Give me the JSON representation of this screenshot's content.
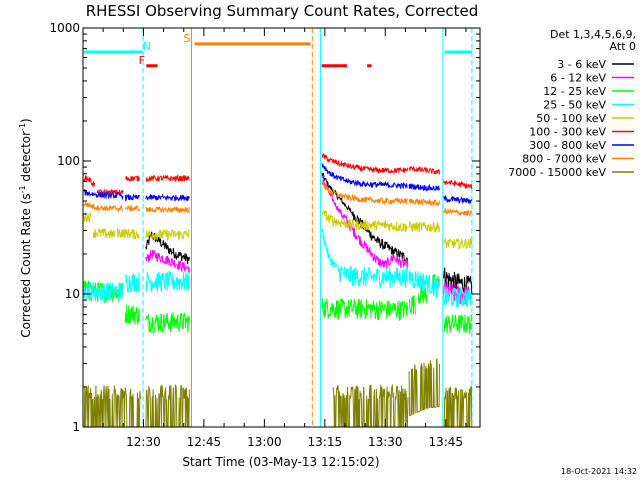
{
  "chart_data": {
    "type": "line",
    "title": "RHESSI Observing Summary Count Rates, Corrected",
    "xlabel": "Start Time (03-May-13 12:15:02)",
    "ylabel_main": "Corrected Count Rate (s",
    "ylabel_sup1": "-1",
    "ylabel_mid": " detector",
    "ylabel_sup2": "-1",
    "ylabel_end": ")",
    "yscale": "log",
    "xlim_minutes": [
      0,
      98.5
    ],
    "ylim": [
      1,
      1000
    ],
    "x_ticks": [
      {
        "label": "12:30",
        "minute": 15
      },
      {
        "label": "12:45",
        "minute": 30
      },
      {
        "label": "13:00",
        "minute": 45
      },
      {
        "label": "13:15",
        "minute": 60
      },
      {
        "label": "13:30",
        "minute": 75
      },
      {
        "label": "13:45",
        "minute": 90
      }
    ],
    "y_ticks": [
      {
        "label": "1",
        "value": 1
      },
      {
        "label": "10",
        "value": 10
      },
      {
        "label": "100",
        "value": 100
      },
      {
        "label": "1000",
        "value": 1000
      }
    ],
    "legend_header": [
      "Det 1,3,4,5,6,9,",
      "Att 0"
    ],
    "series": [
      {
        "name": "3 - 6 keV",
        "color": "#000000",
        "segments": [
          {
            "x": [
              15.6,
              17,
              19,
              21,
              23,
              25,
              26.5
            ],
            "y": [
              22,
              28,
              25,
              22,
              20,
              19,
              18
            ]
          },
          {
            "x": [
              59.3,
              61,
              63,
              65,
              67,
              69,
              71,
              73,
              75,
              77,
              79,
              80.6
            ],
            "y": [
              80,
              65,
              55,
              47,
              40,
              34,
              29,
              25,
              23,
              21,
              19.5,
              18.5
            ]
          },
          {
            "x": [
              89.5,
              90.5,
              92,
              94,
              96.5
            ],
            "y": [
              14,
              13,
              12.5,
              12,
              11.5
            ]
          }
        ]
      },
      {
        "name": "6 - 12 keV",
        "color": "#ff00ff",
        "segments": [
          {
            "x": [
              15.6,
              17,
              19,
              21,
              23,
              25,
              26.5
            ],
            "y": [
              18,
              20,
              19,
              18,
              17,
              16,
              15.5
            ]
          },
          {
            "x": [
              59.3,
              61,
              63,
              65,
              67,
              69,
              71,
              73,
              74,
              75,
              76,
              77,
              78,
              79,
              80.6
            ],
            "y": [
              75,
              58,
              45,
              37,
              30,
              25,
              21,
              18,
              17,
              16.5,
              17.5,
              19,
              18,
              17,
              16.5
            ]
          },
          {
            "x": [
              89.5,
              90.5,
              92,
              94,
              96.5
            ],
            "y": [
              11,
              10.5,
              10,
              10,
              9.8
            ]
          }
        ]
      },
      {
        "name": "12 - 25 keV",
        "color": "#00ff00",
        "segments": [
          {
            "x": [
              0.2,
              3,
              6,
              10
            ],
            "y": [
              11,
              10.5,
              10.5,
              10.5
            ]
          },
          {
            "x": [
              10.5,
              12,
              14
            ],
            "y": [
              7.2,
              7.2,
              7.0
            ]
          },
          {
            "x": [
              15.6,
              20,
              26.5
            ],
            "y": [
              6.2,
              6.2,
              6.2
            ]
          },
          {
            "x": [
              59.3,
              65,
              70,
              75,
              79,
              80.6
            ],
            "y": [
              8.0,
              7.8,
              7.8,
              7.7,
              7.7,
              7.7
            ]
          },
          {
            "x": [
              80.9,
              82.5
            ],
            "y": [
              8.5,
              8.5
            ]
          },
          {
            "x": [
              83.2,
              85.5
            ],
            "y": [
              10,
              10
            ]
          },
          {
            "x": [
              86.5,
              88.5
            ],
            "y": [
              12,
              12
            ]
          },
          {
            "x": [
              89.5,
              93,
              96.5
            ],
            "y": [
              6.0,
              6.0,
              6.0
            ]
          }
        ]
      },
      {
        "name": "25 - 50 keV",
        "color": "#00ffff",
        "segments": [
          {
            "x": [
              0.2,
              3,
              6,
              10
            ],
            "y": [
              11,
              10.5,
              10.5,
              10.5
            ]
          },
          {
            "x": [
              10.5,
              12,
              14
            ],
            "y": [
              12.5,
              12.5,
              12.5
            ]
          },
          {
            "x": [
              15.6,
              20,
              26.5
            ],
            "y": [
              12.5,
              12.5,
              12.5
            ]
          },
          {
            "x": [
              59.3,
              61,
              63,
              65,
              67,
              69,
              71,
              73,
              75,
              77,
              79,
              80.6
            ],
            "y": [
              30,
              19,
              15.5,
              14,
              13.8,
              13.5,
              13.5,
              13.5,
              13.5,
              13.5,
              13.5,
              13.5
            ]
          },
          {
            "x": [
              80.9,
              83,
              86,
              88.5
            ],
            "y": [
              13.5,
              13,
              12,
              11
            ]
          },
          {
            "x": [
              89.5,
              93,
              96.5
            ],
            "y": [
              9.5,
              9.5,
              9.5
            ]
          }
        ]
      },
      {
        "name": "50 - 100 keV",
        "color": "#cccc00",
        "segments": [
          {
            "x": [
              0.2,
              2
            ],
            "y": [
              38,
              38
            ]
          },
          {
            "x": [
              2.5,
              8
            ],
            "y": [
              29,
              28
            ]
          },
          {
            "x": [
              8.5,
              14
            ],
            "y": [
              29,
              28
            ]
          },
          {
            "x": [
              15.6,
              20,
              26.5
            ],
            "y": [
              28,
              28,
              28
            ]
          },
          {
            "x": [
              59.3,
              61,
              63,
              65,
              67,
              69,
              71,
              73,
              75,
              77,
              79,
              80.6
            ],
            "y": [
              42,
              37,
              35,
              34,
              33,
              33,
              33,
              33,
              33,
              32.5,
              32,
              32
            ]
          },
          {
            "x": [
              80.9,
              85,
              88.5
            ],
            "y": [
              32,
              32,
              32
            ]
          },
          {
            "x": [
              89.5,
              93,
              96.5
            ],
            "y": [
              24,
              24,
              24
            ]
          }
        ]
      },
      {
        "name": "100 - 300 keV",
        "color": "#ff0000",
        "segments": [
          {
            "x": [
              0.2,
              1.5,
              3
            ],
            "y": [
              75,
              73,
              65
            ]
          },
          {
            "x": [
              3.5,
              10
            ],
            "y": [
              58,
              58
            ]
          },
          {
            "x": [
              10.5,
              14
            ],
            "y": [
              74,
              74
            ]
          },
          {
            "x": [
              15.6,
              20,
              26.5
            ],
            "y": [
              74,
              74,
              74
            ]
          },
          {
            "x": [
              59.3,
              61,
              64,
              67,
              70,
              73,
              76,
              79,
              80.6
            ],
            "y": [
              110,
              102,
              95,
              90,
              87,
              85,
              85,
              85,
              86
            ]
          },
          {
            "x": [
              80.9,
              85,
              88.5
            ],
            "y": [
              88,
              85,
              82
            ]
          },
          {
            "x": [
              89.5,
              93,
              96.5
            ],
            "y": [
              70,
              67,
              64
            ]
          }
        ]
      },
      {
        "name": "300 - 800 keV",
        "color": "#0000ff",
        "segments": [
          {
            "x": [
              0.2,
              3,
              6,
              10
            ],
            "y": [
              58,
              56,
              55,
              55
            ]
          },
          {
            "x": [
              10.5,
              14
            ],
            "y": [
              53,
              53
            ]
          },
          {
            "x": [
              15.6,
              20,
              26.5
            ],
            "y": [
              53,
              53,
              53
            ]
          },
          {
            "x": [
              59.3,
              61,
              63,
              66,
              70,
              75,
              80.6
            ],
            "y": [
              95,
              82,
              75,
              70,
              67,
              66,
              65
            ]
          },
          {
            "x": [
              80.9,
              85,
              88.5
            ],
            "y": [
              65,
              63,
              62
            ]
          },
          {
            "x": [
              89.5,
              93,
              96.5
            ],
            "y": [
              52,
              51,
              50
            ]
          }
        ]
      },
      {
        "name": "800 - 7000 keV",
        "color": "#ff8000",
        "segments": [
          {
            "x": [
              0.2,
              3,
              6,
              10
            ],
            "y": [
              48,
              45,
              44,
              44
            ]
          },
          {
            "x": [
              10.5,
              14
            ],
            "y": [
              44,
              44
            ]
          },
          {
            "x": [
              15.6,
              20,
              26.5
            ],
            "y": [
              43,
              43,
              43
            ]
          },
          {
            "x": [
              59.3,
              61,
              63,
              66,
              70,
              75,
              80.6
            ],
            "y": [
              68,
              60,
              56,
              53,
              51,
              50,
              50
            ]
          },
          {
            "x": [
              80.9,
              85,
              88.5
            ],
            "y": [
              50,
              49,
              48
            ]
          },
          {
            "x": [
              89.5,
              93,
              96.5
            ],
            "y": [
              42,
              41,
              40
            ]
          }
        ]
      },
      {
        "name": "7000 - 15000 keV",
        "color": "#808000",
        "segments": [
          {
            "x": [
              0.2,
              5,
              10,
              14.5
            ],
            "y": [
              1.6,
              1.6,
              1.6,
              1.6
            ]
          },
          {
            "x": [
              15.6,
              20,
              26.5
            ],
            "y": [
              1.6,
              1.6,
              1.6
            ]
          },
          {
            "x": [
              62,
              70,
              80.6
            ],
            "y": [
              1.6,
              1.6,
              1.6
            ]
          },
          {
            "x": [
              80.9,
              85,
              88.5
            ],
            "y": [
              2.2,
              2.5,
              2.6
            ]
          },
          {
            "x": [
              89.5,
              93,
              96.5
            ],
            "y": [
              1.6,
              1.6,
              1.6
            ]
          }
        ]
      }
    ],
    "flags": [
      {
        "label": "N",
        "color": "#00ffff",
        "label_at": 15.8,
        "bars": [
          [
            0.3,
            14.8
          ],
          [
            89.7,
            96.5
          ]
        ],
        "level": 660
      },
      {
        "label": "F",
        "color": "#ff0000",
        "label_at": 14.6,
        "bars": [
          [
            15.7,
            18.5
          ],
          [
            59.2,
            65.5
          ],
          [
            70.5,
            71.6
          ]
        ],
        "level": 520
      },
      {
        "label": "S",
        "color": "#ff8000",
        "label_at": 25.8,
        "bars": [
          [
            27.7,
            56.5
          ]
        ],
        "level": 760
      }
    ],
    "vertical_markers": [
      {
        "x": 14.9,
        "color": "#00ffff",
        "style": "dashed"
      },
      {
        "x": 26.9,
        "color": "#ff8000",
        "style": "solid"
      },
      {
        "x": 56.9,
        "color": "#ff8000",
        "style": "dashed"
      },
      {
        "x": 58.9,
        "color": "#00ffff",
        "style": "solid"
      },
      {
        "x": 89.3,
        "color": "#00ffff",
        "style": "solid"
      },
      {
        "x": 96.5,
        "color": "#00ffff",
        "style": "dashed"
      }
    ],
    "timestamp": "18-Oct-2021 14:32"
  }
}
